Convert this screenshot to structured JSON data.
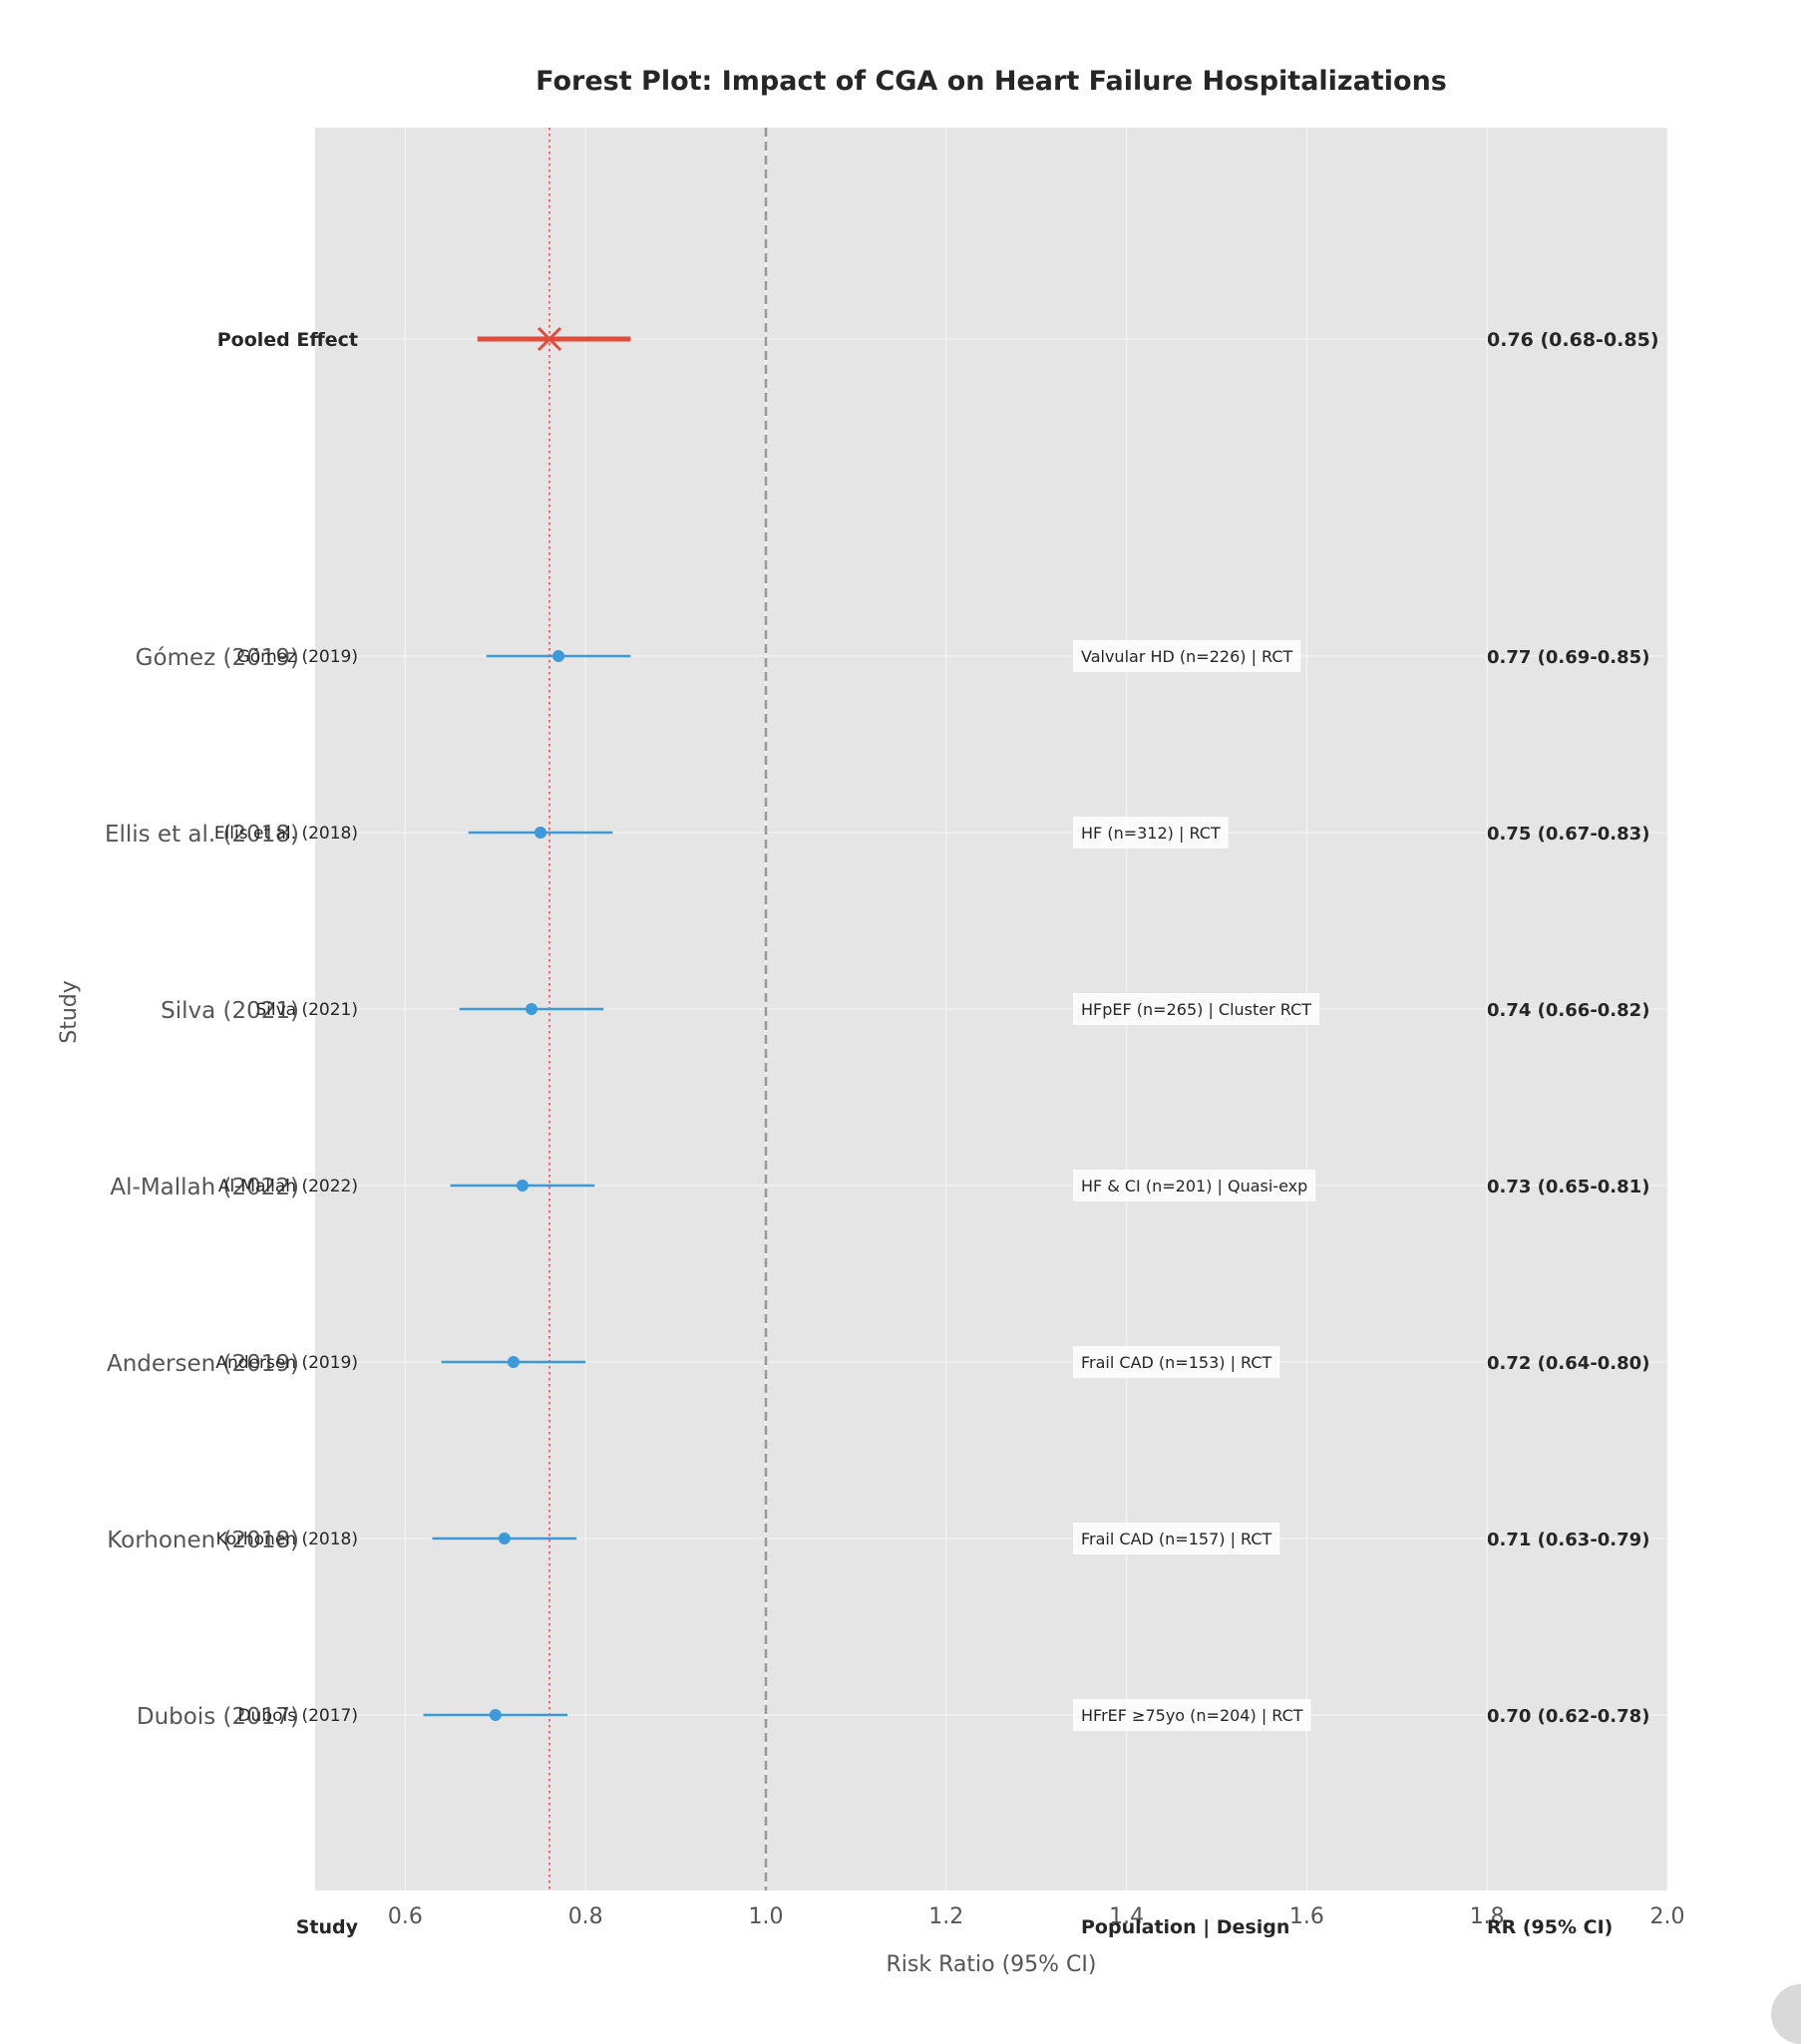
{
  "chart_data": {
    "type": "forest",
    "title": "Forest Plot: Impact of CGA on Heart Failure Hospitalizations",
    "xlabel": "Risk Ratio (95% CI)",
    "ylabel": "Study",
    "xlim": [
      0.5,
      2.0
    ],
    "xticks": [
      0.6,
      0.8,
      1.0,
      1.2,
      1.4,
      1.6,
      1.8,
      2.0
    ],
    "xtick_labels": [
      "0.6",
      "0.8",
      "1.0",
      "1.2",
      "1.4",
      "1.6",
      "1.8",
      "2.0"
    ],
    "null_line": 1.0,
    "pooled_line": 0.76,
    "grid": true,
    "column_headers": {
      "study": "Study",
      "population": "Population | Design",
      "rr": "RR (95% CI)"
    },
    "pooled": {
      "label": "Pooled Effect",
      "rr": 0.76,
      "lo": 0.68,
      "hi": 0.85,
      "rr_text": "0.76 (0.68-0.85)"
    },
    "studies": [
      {
        "name": "Gómez (2019)",
        "axis_label": "Gómez (2019)",
        "rr": 0.77,
        "lo": 0.69,
        "hi": 0.85,
        "population": "Valvular HD (n=226) | RCT",
        "rr_text": "0.77 (0.69-0.85)"
      },
      {
        "name": "Ellis et al. (2018)",
        "axis_label": "Ellis et al. (2018)",
        "rr": 0.75,
        "lo": 0.67,
        "hi": 0.83,
        "population": "HF (n=312) | RCT",
        "rr_text": "0.75 (0.67-0.83)"
      },
      {
        "name": "Silva (2021)",
        "axis_label": "Silva (2021)",
        "rr": 0.74,
        "lo": 0.66,
        "hi": 0.82,
        "population": "HFpEF (n=265) | Cluster RCT",
        "rr_text": "0.74 (0.66-0.82)"
      },
      {
        "name": "Al-Mallah (2022)",
        "axis_label": "Al-Mallah (2022)",
        "rr": 0.73,
        "lo": 0.65,
        "hi": 0.81,
        "population": "HF & CI (n=201) | Quasi-exp",
        "rr_text": "0.73 (0.65-0.81)"
      },
      {
        "name": "Andersen (2019)",
        "axis_label": "Andersen (2019)",
        "rr": 0.72,
        "lo": 0.64,
        "hi": 0.8,
        "population": "Frail CAD (n=153) | RCT",
        "rr_text": "0.72 (0.64-0.80)"
      },
      {
        "name": "Korhonen (2018)",
        "axis_label": "Korhonen (2018)",
        "rr": 0.71,
        "lo": 0.63,
        "hi": 0.79,
        "population": "Frail CAD (n=157) | RCT",
        "rr_text": "0.71 (0.63-0.79)"
      },
      {
        "name": "Dubois (2017)",
        "axis_label": "Dubois (2017)",
        "rr": 0.7,
        "lo": 0.62,
        "hi": 0.78,
        "population": "HFrEF ≥75yo (n=204) | RCT",
        "rr_text": "0.70 (0.62-0.78)"
      }
    ],
    "colors": {
      "study": "#3b9ad9",
      "pooled": "#e04b3a",
      "pooled_line": "#f06a6a",
      "null_line": "#999999",
      "panel": "#e5e5e5",
      "grid": "#f2f2f2",
      "text": "#262626",
      "axis_text": "#555555"
    }
  }
}
